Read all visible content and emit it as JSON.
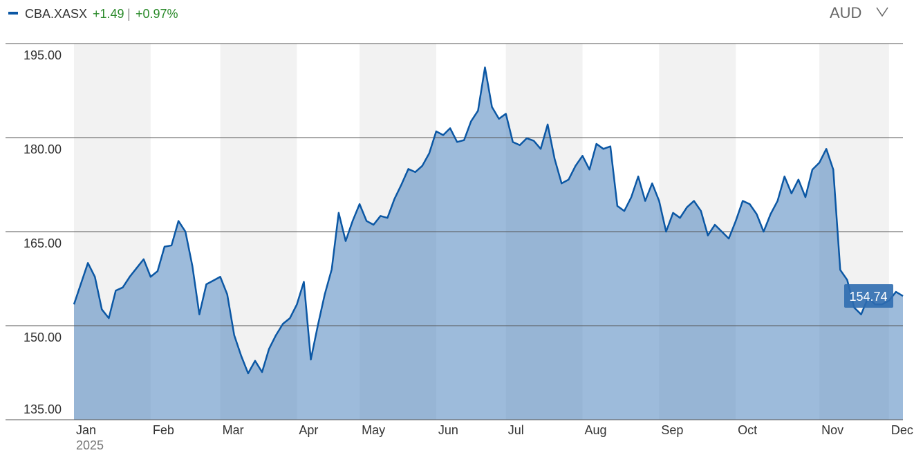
{
  "chart_data": {
    "type": "area",
    "series_name": "CBA.XASX",
    "change": "+1.49",
    "separator": "|",
    "change_pct": "+0.97%",
    "currency": "AUD",
    "color": "#0b57a4",
    "categories": [
      "Jan",
      null,
      null,
      null,
      null,
      null,
      null,
      null,
      null,
      null,
      null,
      "Feb",
      null,
      null,
      null,
      null,
      null,
      null,
      null,
      null,
      null,
      "Mar",
      null,
      null,
      null,
      null,
      null,
      null,
      null,
      null,
      null,
      null,
      "Apr",
      null,
      null,
      null,
      null,
      null,
      null,
      null,
      null,
      "May",
      null,
      null,
      null,
      null,
      null,
      null,
      null,
      null,
      null,
      null,
      "Jun",
      null,
      null,
      null,
      null,
      null,
      null,
      null,
      null,
      null,
      "Jul",
      null,
      null,
      null,
      null,
      null,
      null,
      null,
      null,
      null,
      null,
      "Aug",
      null,
      null,
      null,
      null,
      null,
      null,
      null,
      null,
      null,
      null,
      "Sep",
      null,
      null,
      null,
      null,
      null,
      null,
      null,
      null,
      null,
      null,
      "Oct",
      null,
      null,
      null,
      null,
      null,
      null,
      null,
      null,
      null,
      null,
      null,
      "Nov",
      null,
      null,
      null,
      null,
      null,
      null,
      null,
      null,
      null,
      "Dec",
      null,
      null
    ],
    "year_label": "2025",
    "values": [
      153.4,
      156.7,
      160,
      157.8,
      152.6,
      151.2,
      155.6,
      156.1,
      157.8,
      159.2,
      160.6,
      157.8,
      158.7,
      162.6,
      162.8,
      166.7,
      165,
      159.5,
      151.8,
      156.6,
      157.2,
      157.8,
      155,
      148.5,
      145.2,
      142.4,
      144.4,
      142.6,
      146.3,
      148.5,
      150.3,
      151.2,
      153.4,
      157,
      144.6,
      150,
      155,
      159,
      168,
      163.5,
      166.7,
      169.4,
      166.7,
      166.1,
      167.5,
      167.2,
      170.2,
      172.5,
      175,
      174.5,
      175.5,
      177.5,
      181,
      180.4,
      181.5,
      179.3,
      179.6,
      182.6,
      184.3,
      191.2,
      184.9,
      183,
      183.8,
      179.3,
      178.8,
      179.9,
      179.5,
      178.2,
      182.1,
      176.6,
      172.7,
      173.3,
      175.5,
      177.1,
      174.9,
      179,
      178.2,
      178.6,
      169.1,
      168.3,
      170.5,
      173.8,
      169.9,
      172.7,
      169.9,
      165,
      168,
      167.2,
      168.9,
      169.9,
      168.3,
      164.4,
      166.1,
      165,
      163.9,
      166.7,
      169.9,
      169.4,
      167.8,
      165,
      167.8,
      169.9,
      173.8,
      171.1,
      173.3,
      170.5,
      174.9,
      176,
      178.2,
      174.9,
      158.9,
      157.3,
      152.9,
      151.8,
      154.5,
      153.4,
      153.4,
      154,
      155.4,
      154.74
    ],
    "ylim": [
      135,
      195
    ],
    "yticks": [
      {
        "value": 135,
        "label": "135.00"
      },
      {
        "value": 150,
        "label": "150.00"
      },
      {
        "value": 165,
        "label": "165.00"
      },
      {
        "value": 180,
        "label": "180.00"
      },
      {
        "value": 195,
        "label": "195.00"
      }
    ],
    "grid": true
  }
}
